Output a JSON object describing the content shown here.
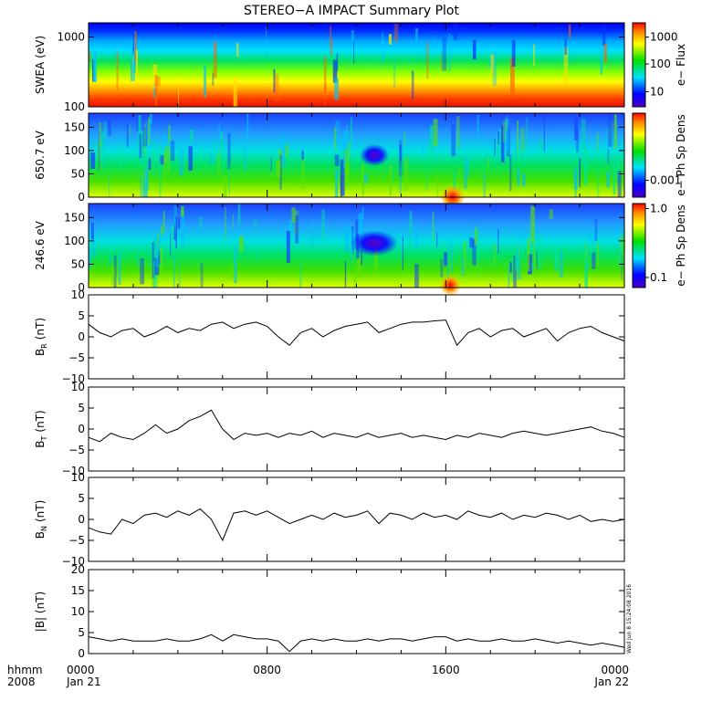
{
  "title": "STEREO−A IMPACT Summary Plot",
  "timestamp": "Wed Jun 8 15:24:08 2016",
  "x_axis": {
    "row1_label": "hhmm",
    "row2_label": "2008",
    "ticks": [
      {
        "t": 0,
        "time": "0000",
        "date": "Jan 21"
      },
      {
        "t": 8,
        "time": "0800",
        "date": ""
      },
      {
        "t": 16,
        "time": "1600",
        "date": ""
      },
      {
        "t": 24,
        "time": "0000",
        "date": "Jan 22"
      }
    ]
  },
  "chart_data": [
    {
      "id": "swea",
      "type": "heatmap",
      "ylabel": "SWEA (eV)",
      "ylim": [
        100,
        1600
      ],
      "yscale": "log",
      "yticks": [
        "1000",
        "100"
      ],
      "colorbar": {
        "label": "e− Flux",
        "ticks": [
          "1000",
          "100",
          "10"
        ],
        "scale": "log",
        "range": [
          3,
          3000
        ]
      },
      "description_bands": {
        "level_100eV": "red",
        "level_300eV": "yellow-green",
        "level_1000eV": "cyan",
        "level_1600eV": "blue"
      }
    },
    {
      "id": "pad650",
      "type": "heatmap",
      "ylabel": "650.7 eV",
      "ylim": [
        0,
        180
      ],
      "yticks": [
        "150",
        "100",
        "50",
        "0"
      ],
      "colorbar": {
        "label": "e− Ph Sp Dens",
        "ticks": [
          "0.001"
        ],
        "scale": "log"
      },
      "features": [
        {
          "t": 12.8,
          "pitch": 90,
          "kind": "minimum"
        },
        {
          "t": 16.3,
          "pitch": 0,
          "kind": "maximum"
        }
      ]
    },
    {
      "id": "pad246",
      "type": "heatmap",
      "ylabel": "246.6 eV",
      "ylim": [
        0,
        180
      ],
      "yticks": [
        "150",
        "100",
        "50",
        "0"
      ],
      "colorbar": {
        "label": "e− Ph Sp Dens",
        "ticks": [
          "1.0",
          "0.1"
        ],
        "scale": "log"
      },
      "features": [
        {
          "t": 12.8,
          "pitch": 95,
          "kind": "minimum"
        },
        {
          "t": 16.2,
          "pitch": 5,
          "kind": "maximum"
        }
      ]
    },
    {
      "id": "br",
      "type": "line",
      "ylabel_main": "B",
      "ylabel_sub": "R",
      "ylabel_unit": "(nT)",
      "ylim": [
        -10,
        10
      ],
      "yticks": [
        "10",
        "5",
        "0",
        "−5",
        "−10"
      ],
      "x": [
        0,
        0.5,
        1,
        1.5,
        2,
        2.5,
        3,
        3.5,
        4,
        4.5,
        5,
        5.5,
        6,
        6.5,
        7,
        7.5,
        8,
        8.5,
        9,
        9.5,
        10,
        10.5,
        11,
        11.5,
        12,
        12.5,
        13,
        13.5,
        14,
        14.5,
        15,
        15.5,
        16,
        16.5,
        17,
        17.5,
        18,
        18.5,
        19,
        19.5,
        20,
        20.5,
        21,
        21.5,
        22,
        22.5,
        23,
        23.5,
        24
      ],
      "y": [
        3,
        1,
        0,
        1.5,
        2,
        0,
        1,
        2.5,
        1,
        2,
        1.5,
        3,
        3.5,
        2,
        3,
        3.5,
        2.5,
        0,
        -2,
        1,
        2,
        0,
        1.5,
        2.5,
        3,
        3.5,
        1,
        2,
        3,
        3.5,
        3.5,
        3.8,
        4,
        -2,
        1,
        2,
        0,
        1.5,
        2,
        0,
        1,
        2,
        -1,
        1,
        2,
        2.5,
        1,
        0,
        -1
      ]
    },
    {
      "id": "bt",
      "type": "line",
      "ylabel_main": "B",
      "ylabel_sub": "T",
      "ylabel_unit": "(nT)",
      "ylim": [
        -10,
        10
      ],
      "yticks": [
        "10",
        "5",
        "0",
        "−5",
        "−10"
      ],
      "x": [
        0,
        0.5,
        1,
        1.5,
        2,
        2.5,
        3,
        3.5,
        4,
        4.5,
        5,
        5.5,
        6,
        6.5,
        7,
        7.5,
        8,
        8.5,
        9,
        9.5,
        10,
        10.5,
        11,
        11.5,
        12,
        12.5,
        13,
        13.5,
        14,
        14.5,
        15,
        15.5,
        16,
        16.5,
        17,
        17.5,
        18,
        18.5,
        19,
        19.5,
        20,
        20.5,
        21,
        21.5,
        22,
        22.5,
        23,
        23.5,
        24
      ],
      "y": [
        -2,
        -3,
        -1,
        -2,
        -2.5,
        -1,
        1,
        -1,
        0,
        2,
        3,
        4.5,
        0,
        -2.5,
        -1,
        -1.5,
        -1,
        -2,
        -1,
        -1.5,
        -0.5,
        -2,
        -1,
        -1.5,
        -2,
        -1,
        -2,
        -1.5,
        -1,
        -2,
        -1.5,
        -2,
        -2.5,
        -1.5,
        -2,
        -1,
        -1.5,
        -2,
        -1,
        -0.5,
        -1,
        -1.5,
        -1,
        -0.5,
        0,
        0.5,
        -0.5,
        -1,
        -2
      ]
    },
    {
      "id": "bn",
      "type": "line",
      "ylabel_main": "B",
      "ylabel_sub": "N",
      "ylabel_unit": "(nT)",
      "ylim": [
        -10,
        10
      ],
      "yticks": [
        "10",
        "5",
        "0",
        "−5",
        "−10"
      ],
      "x": [
        0,
        0.5,
        1,
        1.5,
        2,
        2.5,
        3,
        3.5,
        4,
        4.5,
        5,
        5.5,
        6,
        6.5,
        7,
        7.5,
        8,
        8.5,
        9,
        9.5,
        10,
        10.5,
        11,
        11.5,
        12,
        12.5,
        13,
        13.5,
        14,
        14.5,
        15,
        15.5,
        16,
        16.5,
        17,
        17.5,
        18,
        18.5,
        19,
        19.5,
        20,
        20.5,
        21,
        21.5,
        22,
        22.5,
        23,
        23.5,
        24
      ],
      "y": [
        -2,
        -3,
        -3.5,
        0,
        -1,
        1,
        1.5,
        0.5,
        2,
        1,
        2.5,
        0,
        -5,
        1.5,
        2,
        1,
        2,
        0.5,
        -1,
        0,
        1,
        0,
        1.5,
        0.5,
        1,
        2,
        -1,
        1.5,
        1,
        0,
        1.5,
        0.5,
        1,
        0,
        2,
        1,
        0.5,
        1.5,
        0,
        1,
        0.5,
        1.5,
        1,
        0,
        1,
        -0.5,
        0,
        -0.5,
        0
      ]
    },
    {
      "id": "bmag",
      "type": "line",
      "ylabel_main": "|B| (nT)",
      "ylim": [
        0,
        20
      ],
      "yticks": [
        "20",
        "15",
        "10",
        "5",
        "0"
      ],
      "x": [
        0,
        0.5,
        1,
        1.5,
        2,
        2.5,
        3,
        3.5,
        4,
        4.5,
        5,
        5.5,
        6,
        6.5,
        7,
        7.5,
        8,
        8.5,
        9,
        9.5,
        10,
        10.5,
        11,
        11.5,
        12,
        12.5,
        13,
        13.5,
        14,
        14.5,
        15,
        15.5,
        16,
        16.5,
        17,
        17.5,
        18,
        18.5,
        19,
        19.5,
        20,
        20.5,
        21,
        21.5,
        22,
        22.5,
        23,
        23.5,
        24
      ],
      "y": [
        4,
        3.5,
        3,
        3.5,
        3,
        3,
        3,
        3.5,
        3,
        3,
        3.5,
        4.5,
        3,
        4.5,
        4,
        3.5,
        3.5,
        3,
        0.5,
        3,
        3.5,
        3,
        3.5,
        3,
        3,
        3.5,
        3,
        3.5,
        3.5,
        3,
        3.5,
        4,
        4,
        3,
        3.5,
        3,
        3,
        3.5,
        3,
        3,
        3.5,
        3,
        2.5,
        3,
        2.5,
        2,
        2.5,
        2,
        1.5
      ]
    }
  ]
}
